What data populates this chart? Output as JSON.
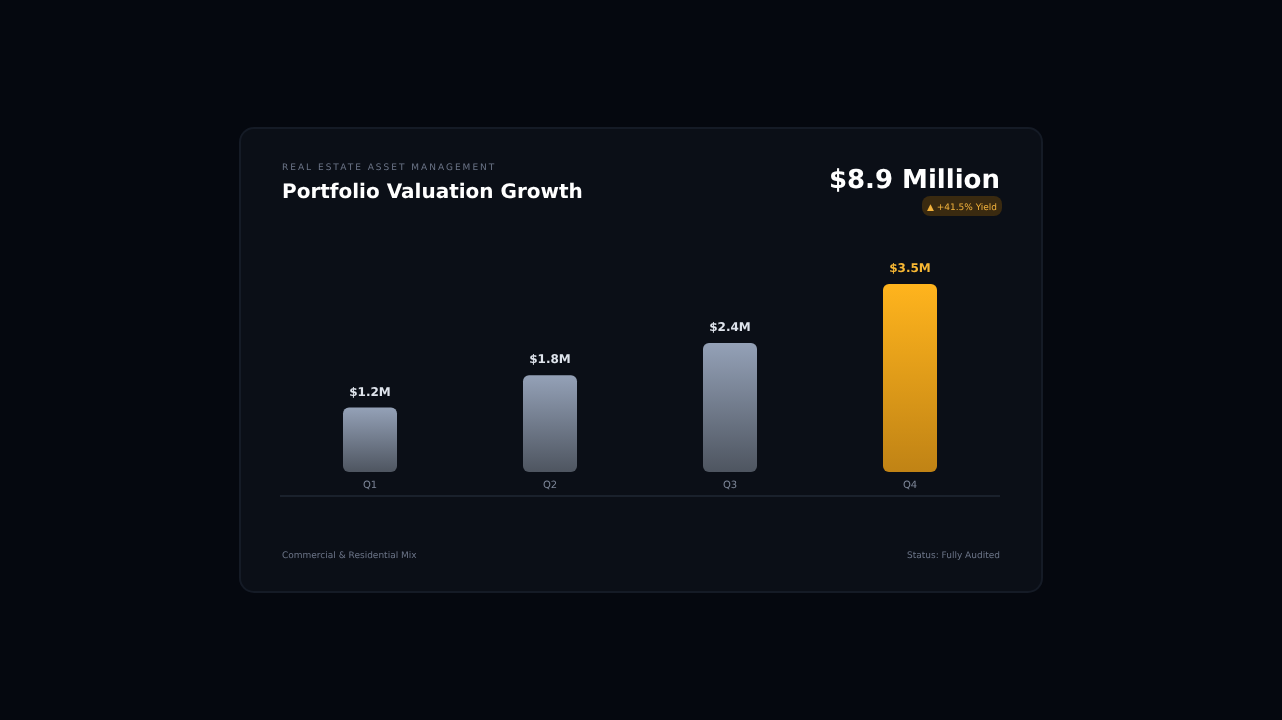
{
  "chart_data": {
    "type": "bar",
    "subtitle": "REAL ESTATE ASSET MANAGEMENT",
    "title": "Portfolio Valuation Growth",
    "annotations": [
      "$8.9 Million",
      "▲ +41.5% Yield",
      "Commercial & Residential Mix",
      "Status: Fully Audited"
    ],
    "categories": [
      "Q1",
      "Q2",
      "Q3",
      "Q4"
    ],
    "values": [
      1.2,
      1.8,
      2.4,
      3.5
    ],
    "colors": [
      "#8a96aa",
      "#8a96aa",
      "#8a96aa",
      "#f7a81b"
    ],
    "value_labels": [
      "$1.2M",
      "$1.8M",
      "$2.4M",
      "$3.5M"
    ]
  }
}
